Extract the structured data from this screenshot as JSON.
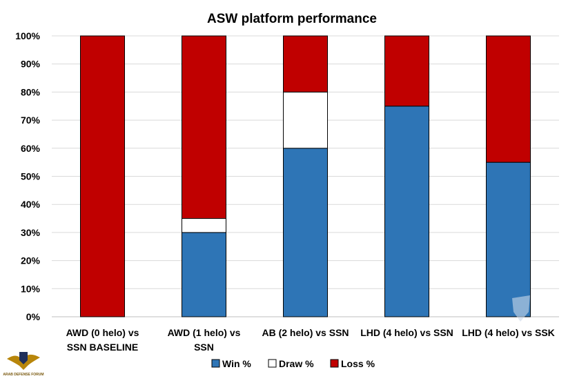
{
  "chart_data": {
    "type": "bar",
    "stacked": true,
    "title": "ASW platform performance",
    "categories": [
      [
        "AWD (0 helo) vs",
        "SSN BASELINE"
      ],
      [
        "AWD (1 helo) vs",
        "SSN"
      ],
      [
        "AB (2 helo) vs SSN"
      ],
      [
        "LHD (4 helo) vs SSN"
      ],
      [
        "LHD (4 helo) vs SSK"
      ]
    ],
    "series": [
      {
        "name": "Win %",
        "color": "#2e75b6",
        "values": [
          0,
          30,
          60,
          75,
          55
        ]
      },
      {
        "name": "Draw %",
        "color": "#ffffff",
        "values": [
          0,
          5,
          20,
          0,
          0
        ]
      },
      {
        "name": "Loss %",
        "color": "#c00000",
        "values": [
          100,
          65,
          20,
          25,
          45
        ]
      }
    ],
    "ylim": [
      0,
      100
    ],
    "yticks": [
      "0%",
      "10%",
      "20%",
      "30%",
      "40%",
      "50%",
      "60%",
      "70%",
      "80%",
      "90%",
      "100%"
    ],
    "grid": true,
    "legend_position": "bottom"
  },
  "watermark": {
    "logo_text": "ARAB DEFENSE FORUM"
  }
}
